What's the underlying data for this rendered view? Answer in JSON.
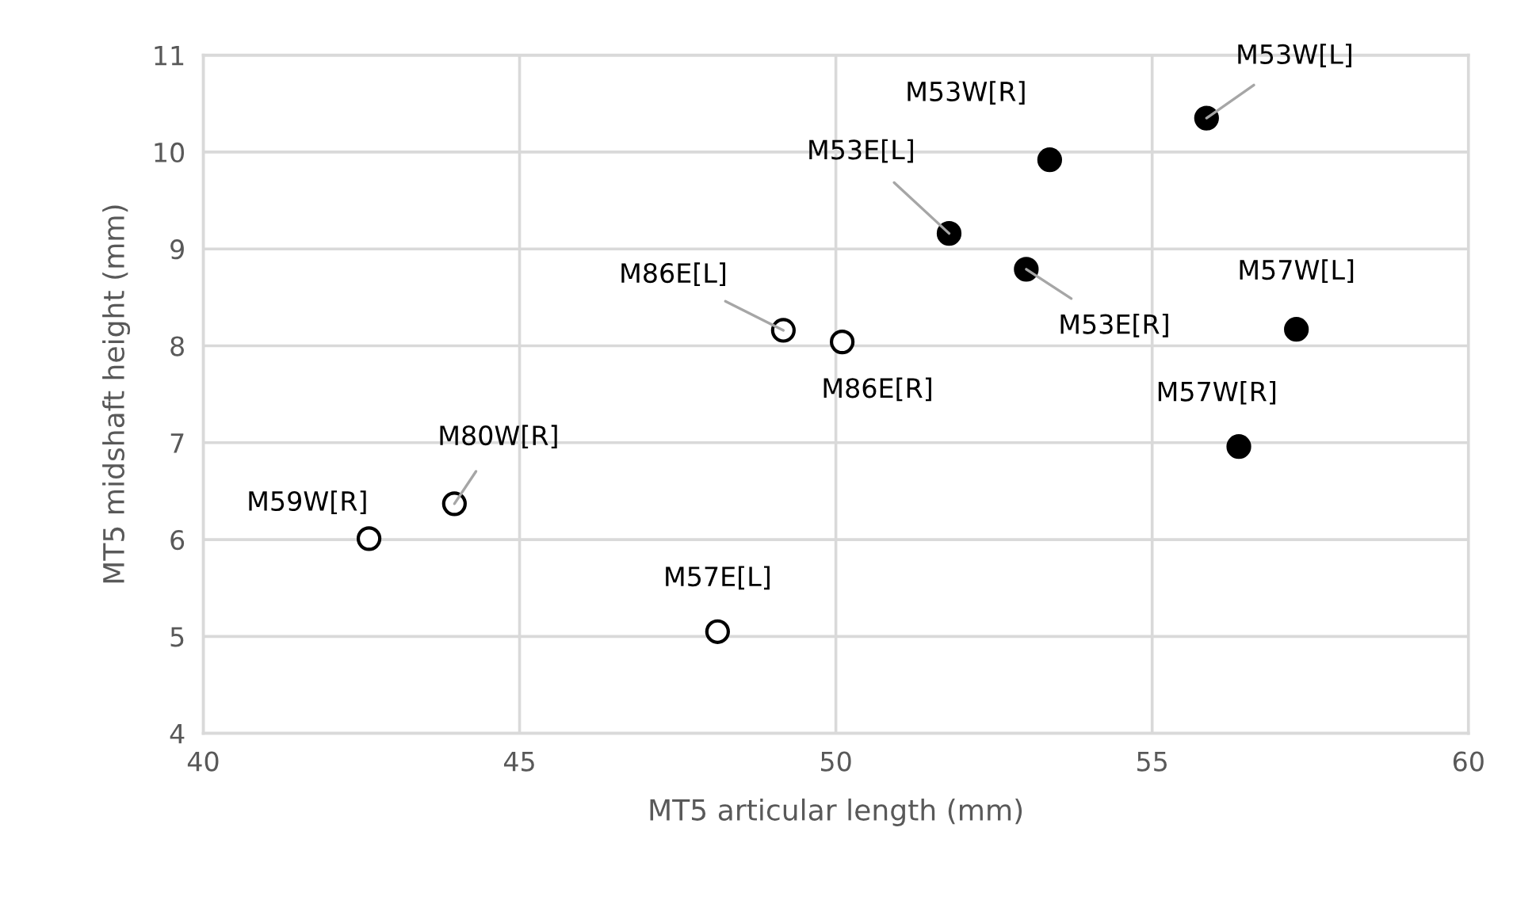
{
  "chart_data": {
    "type": "scatter",
    "xlabel": "MT5 articular length (mm)",
    "ylabel": "MT5 midshaft height (mm)",
    "xlim": [
      40,
      60
    ],
    "xticks": [
      40,
      45,
      50,
      55,
      60
    ],
    "ylim": [
      4,
      11
    ],
    "yticks": [
      4,
      5,
      6,
      7,
      8,
      9,
      10,
      11
    ],
    "grid": true,
    "marker": "circle",
    "series": [
      {
        "color": "#ffffff",
        "x": [
          42.62,
          43.97,
          49.17,
          50.1,
          48.13
        ],
        "values": [
          6.01,
          6.37,
          8.16,
          8.04,
          5.05
        ]
      },
      {
        "color": "#000000",
        "x": [
          51.79,
          53.38,
          53.01,
          55.86,
          57.28,
          56.37
        ],
        "values": [
          9.16,
          9.92,
          8.79,
          10.35,
          8.17,
          6.96
        ]
      }
    ],
    "annotations": [
      {
        "text": "M59W[R]",
        "x": 42.62,
        "y": 6.01
      },
      {
        "text": "M80W[R]",
        "x": 43.97,
        "y": 6.37
      },
      {
        "text": "M86E[L]",
        "x": 49.17,
        "y": 8.16
      },
      {
        "text": "M86E[R]",
        "x": 50.1,
        "y": 8.04
      },
      {
        "text": "M57E[L]",
        "x": 48.13,
        "y": 5.05
      },
      {
        "text": "M53E[L]",
        "x": 51.79,
        "y": 9.16
      },
      {
        "text": "M53W[R]",
        "x": 53.38,
        "y": 9.92
      },
      {
        "text": "M53E[R]",
        "x": 53.01,
        "y": 8.79
      },
      {
        "text": "M53W[L]",
        "x": 55.86,
        "y": 10.35
      },
      {
        "text": "M57W[L]",
        "x": 57.28,
        "y": 8.17
      },
      {
        "text": "M57W[R]",
        "x": 56.37,
        "y": 6.96
      }
    ]
  }
}
